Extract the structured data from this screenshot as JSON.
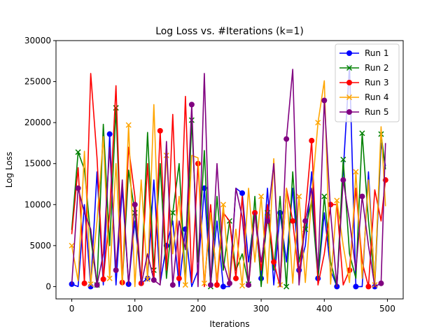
{
  "chart_data": {
    "type": "line",
    "title": "Log Loss vs. #Iterations (k=1)",
    "xlabel": "Iterations",
    "ylabel": "Log Loss",
    "xlim": [
      -25,
      525
    ],
    "ylim": [
      -1500,
      30000
    ],
    "xticks": [
      0,
      100,
      200,
      300,
      400,
      500
    ],
    "yticks": [
      0,
      5000,
      10000,
      15000,
      20000,
      25000,
      30000
    ],
    "grid": false,
    "legend_position": "top-right",
    "x": [
      0,
      10,
      20,
      30,
      40,
      50,
      60,
      70,
      80,
      90,
      100,
      110,
      120,
      130,
      140,
      150,
      160,
      170,
      180,
      190,
      200,
      210,
      220,
      230,
      240,
      250,
      260,
      270,
      280,
      290,
      300,
      310,
      320,
      330,
      340,
      350,
      360,
      370,
      380,
      390,
      400,
      410,
      420,
      430,
      440,
      450,
      460,
      470,
      480,
      490,
      497
    ],
    "series": [
      {
        "name": "Run 1",
        "color": "#0000ff",
        "marker": "circle",
        "values": [
          300,
          0,
          10000,
          0,
          14000,
          200,
          18600,
          200,
          12000,
          300,
          8000,
          400,
          1000,
          13000,
          400,
          5000,
          8000,
          0,
          7000,
          0,
          2000,
          12000,
          300,
          8000,
          0,
          0,
          12000,
          11400,
          3000,
          9000,
          1000,
          12000,
          200,
          9000,
          3000,
          12000,
          2000,
          5000,
          14000,
          1000,
          9000,
          2000,
          0,
          14000,
          27000,
          0,
          0,
          14000,
          0,
          17500,
          14700
        ]
      },
      {
        "name": "Run 2",
        "color": "#008000",
        "marker": "x",
        "values": [
          6900,
          16400,
          14300,
          6000,
          200,
          19800,
          5000,
          21800,
          400,
          14200,
          9000,
          500,
          18800,
          2000,
          15000,
          1000,
          9000,
          15000,
          400,
          20300,
          3000,
          16600,
          0,
          11000,
          2000,
          8000,
          2000,
          4000,
          300,
          11000,
          0,
          9000,
          2000,
          11000,
          0,
          14000,
          3000,
          7000,
          10500,
          1000,
          11000,
          3000,
          0,
          15500,
          4000,
          1000,
          18700,
          8000,
          400,
          18600,
          14300
        ]
      },
      {
        "name": "Run 3",
        "color": "#ff0000",
        "marker": "circle",
        "values": [
          6400,
          14500,
          400,
          26000,
          15700,
          900,
          9000,
          24500,
          500,
          17000,
          11000,
          400,
          15000,
          600,
          19000,
          2000,
          21000,
          1000,
          23200,
          500,
          15000,
          0,
          10000,
          200,
          9000,
          8000,
          1000,
          11000,
          0,
          9000,
          2000,
          10000,
          3000,
          0,
          12000,
          8000,
          1000,
          9000,
          17800,
          200,
          4000,
          10000,
          10000,
          200,
          2000,
          12000,
          3000,
          0,
          11800,
          8000,
          13000
        ]
      },
      {
        "name": "Run 4",
        "color": "#ffa500",
        "marker": "x",
        "values": [
          5000,
          700,
          16500,
          300,
          8000,
          18300,
          1000,
          15000,
          200,
          19700,
          0,
          13000,
          900,
          22200,
          500,
          16000,
          4000,
          11000,
          200,
          16000,
          15700,
          400,
          9000,
          800,
          10000,
          600,
          7000,
          100,
          12000,
          3000,
          11000,
          400,
          15600,
          200,
          12000,
          400,
          11000,
          500,
          11000,
          20000,
          25100,
          300,
          10500,
          5000,
          500,
          14000,
          1000,
          13000,
          200,
          19500,
          9800
        ]
      },
      {
        "name": "Run 5",
        "color": "#800080",
        "marker": "circle",
        "values": [
          200,
          12000,
          9000,
          7000,
          200,
          4000,
          17000,
          2000,
          13000,
          200,
          10000,
          200,
          4000,
          800,
          200,
          17700,
          200,
          8000,
          4500,
          22200,
          0,
          26000,
          200,
          15000,
          3000,
          400,
          12000,
          8500,
          200,
          9000,
          3000,
          8000,
          15000,
          0,
          18000,
          26500,
          200,
          8000,
          12000,
          2000,
          22700,
          9000,
          0,
          13000,
          8000,
          2000,
          11000,
          5000,
          0,
          400,
          17500
        ]
      }
    ]
  }
}
